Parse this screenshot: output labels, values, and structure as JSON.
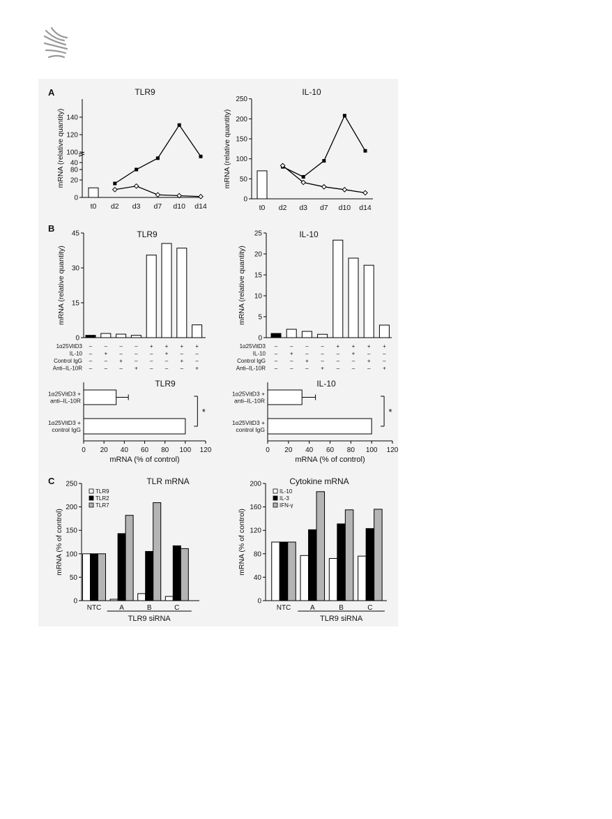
{
  "page": {
    "background": "#ffffff",
    "figure_background": "#f3f3f3",
    "logo": "journal-logo-rays-icon"
  },
  "panels": {
    "a": "A",
    "b": "B",
    "c": "C"
  },
  "chart_data": [
    {
      "id": "A_TLR9",
      "type": "line",
      "title": "TLR9",
      "ylabel": "mRNA (relative quantity)",
      "x": [
        "t0",
        "d2",
        "d3",
        "d7",
        "d10",
        "d14"
      ],
      "broken_axis": true,
      "yticks_lower": [
        0,
        20,
        40
      ],
      "yticks_upper": [
        80,
        100,
        120,
        140
      ],
      "bar": {
        "x": "t0",
        "value": 11
      },
      "series": [
        {
          "marker": "filled-square",
          "x": [
            "d2",
            "d3",
            "d7",
            "d10",
            "d14"
          ],
          "values": [
            16,
            32,
            45,
            131,
            95
          ]
        },
        {
          "marker": "open-diamond",
          "x": [
            "d2",
            "d3",
            "d7",
            "d10",
            "d14"
          ],
          "values": [
            9,
            13,
            3,
            2,
            1
          ]
        }
      ]
    },
    {
      "id": "A_IL10",
      "type": "line",
      "title": "IL-10",
      "ylabel": "mRNA (relative quantity)",
      "x": [
        "t0",
        "d2",
        "d3",
        "d7",
        "d10",
        "d14"
      ],
      "ylim": [
        0,
        250
      ],
      "yticks": [
        0,
        50,
        100,
        150,
        200,
        250
      ],
      "bar": {
        "x": "t0",
        "value": 70
      },
      "series": [
        {
          "marker": "filled-square",
          "x": [
            "d2",
            "d3",
            "d7",
            "d10",
            "d14"
          ],
          "values": [
            80,
            55,
            95,
            208,
            120
          ]
        },
        {
          "marker": "open-diamond",
          "x": [
            "d2",
            "d3",
            "d7",
            "d10",
            "d14"
          ],
          "values": [
            83,
            41,
            30,
            23,
            15
          ]
        }
      ]
    },
    {
      "id": "B_TLR9",
      "type": "bar",
      "title": "TLR9",
      "ylabel": "mRNA (relative quantity)",
      "ylim": [
        0,
        45
      ],
      "yticks": [
        0,
        15,
        30,
        45
      ],
      "values": [
        1,
        1.8,
        1.5,
        1,
        35.5,
        40.5,
        38.5,
        5.5
      ],
      "filled": [
        true,
        false,
        false,
        false,
        false,
        false,
        false,
        false
      ],
      "conditions": [
        {
          "label": "1α25VitD3",
          "signs": [
            "–",
            "–",
            "–",
            "–",
            "+",
            "+",
            "+",
            "+"
          ]
        },
        {
          "label": "IL-10",
          "signs": [
            "–",
            "+",
            "–",
            "–",
            "–",
            "+",
            "–",
            "–"
          ]
        },
        {
          "label": "Control IgG",
          "signs": [
            "–",
            "–",
            "+",
            "–",
            "–",
            "–",
            "+",
            "–"
          ]
        },
        {
          "label": "Anti–IL-10R",
          "signs": [
            "–",
            "–",
            "–",
            "+",
            "–",
            "–",
            "–",
            "+"
          ]
        }
      ]
    },
    {
      "id": "B_IL10",
      "type": "bar",
      "title": "IL-10",
      "ylabel": "mRNA (relative quantity)",
      "ylim": [
        0,
        25
      ],
      "yticks": [
        0,
        5,
        10,
        15,
        20,
        25
      ],
      "values": [
        1,
        2,
        1.5,
        0.8,
        23.3,
        19,
        17.3,
        3
      ],
      "filled": [
        true,
        false,
        false,
        false,
        false,
        false,
        false,
        false
      ],
      "conditions": [
        {
          "label": "1α25VitD3",
          "signs": [
            "–",
            "–",
            "–",
            "–",
            "+",
            "+",
            "+",
            "+"
          ]
        },
        {
          "label": "IL-10",
          "signs": [
            "–",
            "+",
            "–",
            "–",
            "–",
            "+",
            "–",
            "–"
          ]
        },
        {
          "label": "Control IgG",
          "signs": [
            "–",
            "–",
            "+",
            "–",
            "–",
            "–",
            "+",
            "–"
          ]
        },
        {
          "label": "Anti–IL-10R",
          "signs": [
            "–",
            "–",
            "–",
            "+",
            "–",
            "–",
            "–",
            "+"
          ]
        }
      ]
    },
    {
      "id": "B_TLR9_pct",
      "type": "bar",
      "orientation": "horizontal",
      "title": "TLR9",
      "xlabel": "mRNA (% of control)",
      "xlim": [
        0,
        120
      ],
      "xticks": [
        0,
        20,
        40,
        60,
        80,
        100,
        120
      ],
      "categories": [
        [
          "1α25VitD3 +",
          "anti–IL-10R"
        ],
        [
          "1α25VitD3 +",
          "control IgG"
        ]
      ],
      "values": [
        32,
        100
      ],
      "errors": [
        12,
        0
      ],
      "significance": "*"
    },
    {
      "id": "B_IL10_pct",
      "type": "bar",
      "orientation": "horizontal",
      "title": "IL-10",
      "xlabel": "mRNA (% of control)",
      "xlim": [
        0,
        120
      ],
      "xticks": [
        0,
        20,
        40,
        60,
        80,
        100,
        120
      ],
      "categories": [
        [
          "1α25VitD3 +",
          "anti–IL-10R"
        ],
        [
          "1α25VitD3 +",
          "control IgG"
        ]
      ],
      "values": [
        33,
        100
      ],
      "errors": [
        13,
        0
      ],
      "significance": "*"
    },
    {
      "id": "C_TLR",
      "type": "bar",
      "title": "TLR mRNA",
      "ylabel": "mRNA (% of control)",
      "ylim": [
        0,
        250
      ],
      "yticks": [
        0,
        50,
        100,
        150,
        200,
        250
      ],
      "categories": [
        "NTC",
        "A",
        "B",
        "C"
      ],
      "group_label": "TLR9 siRNA",
      "series": [
        {
          "name": "TLR9",
          "color": "#ffffff",
          "values": [
            100,
            3,
            15,
            9
          ]
        },
        {
          "name": "TLR2",
          "color": "#000000",
          "values": [
            100,
            143,
            105,
            117
          ]
        },
        {
          "name": "TLR7",
          "color": "#b4b4b4",
          "values": [
            100,
            182,
            209,
            111
          ]
        }
      ]
    },
    {
      "id": "C_Cytokine",
      "type": "bar",
      "title": "Cytokine mRNA",
      "ylabel": "mRNA (% of control)",
      "ylim": [
        0,
        200
      ],
      "yticks": [
        0,
        40,
        80,
        120,
        160,
        200
      ],
      "categories": [
        "NTC",
        "A",
        "B",
        "C"
      ],
      "group_label": "TLR9 siRNA",
      "series": [
        {
          "name": "IL-10",
          "color": "#ffffff",
          "values": [
            100,
            77,
            72,
            76
          ]
        },
        {
          "name": "IL-3",
          "color": "#000000",
          "values": [
            100,
            121,
            131,
            123
          ]
        },
        {
          "name": "IFN-γ",
          "color": "#b4b4b4",
          "values": [
            100,
            186,
            155,
            156
          ]
        }
      ]
    }
  ]
}
